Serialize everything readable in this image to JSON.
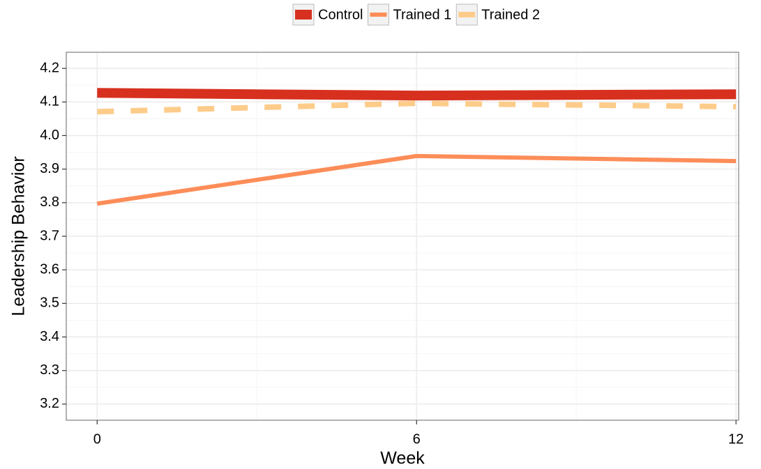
{
  "chart_data": {
    "type": "line",
    "x_label": "Week",
    "y_label": "Leadership Behavior",
    "x": [
      0,
      6,
      12
    ],
    "series": [
      {
        "name": "Control",
        "color": "#d7301f",
        "width": 14,
        "dashed": false,
        "values": [
          4.127,
          4.119,
          4.123
        ]
      },
      {
        "name": "Trained 1",
        "color": "#fc8d59",
        "width": 6,
        "dashed": false,
        "values": [
          3.797,
          3.939,
          3.924
        ]
      },
      {
        "name": "Trained 2",
        "color": "#fdcc8a",
        "width": 8,
        "dashed": true,
        "values": [
          4.071,
          4.096,
          4.086
        ]
      }
    ],
    "xlim": [
      -0.58,
      12.05
    ],
    "xticks": [
      0,
      6,
      12
    ],
    "ylim": [
      3.152,
      4.248
    ],
    "yticks": [
      3.2,
      3.3,
      3.4,
      3.5,
      3.6,
      3.7,
      3.8,
      3.9,
      {
        "value": 4,
        "label": "4.0"
      },
      4.1,
      4.2
    ],
    "grid": true,
    "legend_position": "top"
  }
}
